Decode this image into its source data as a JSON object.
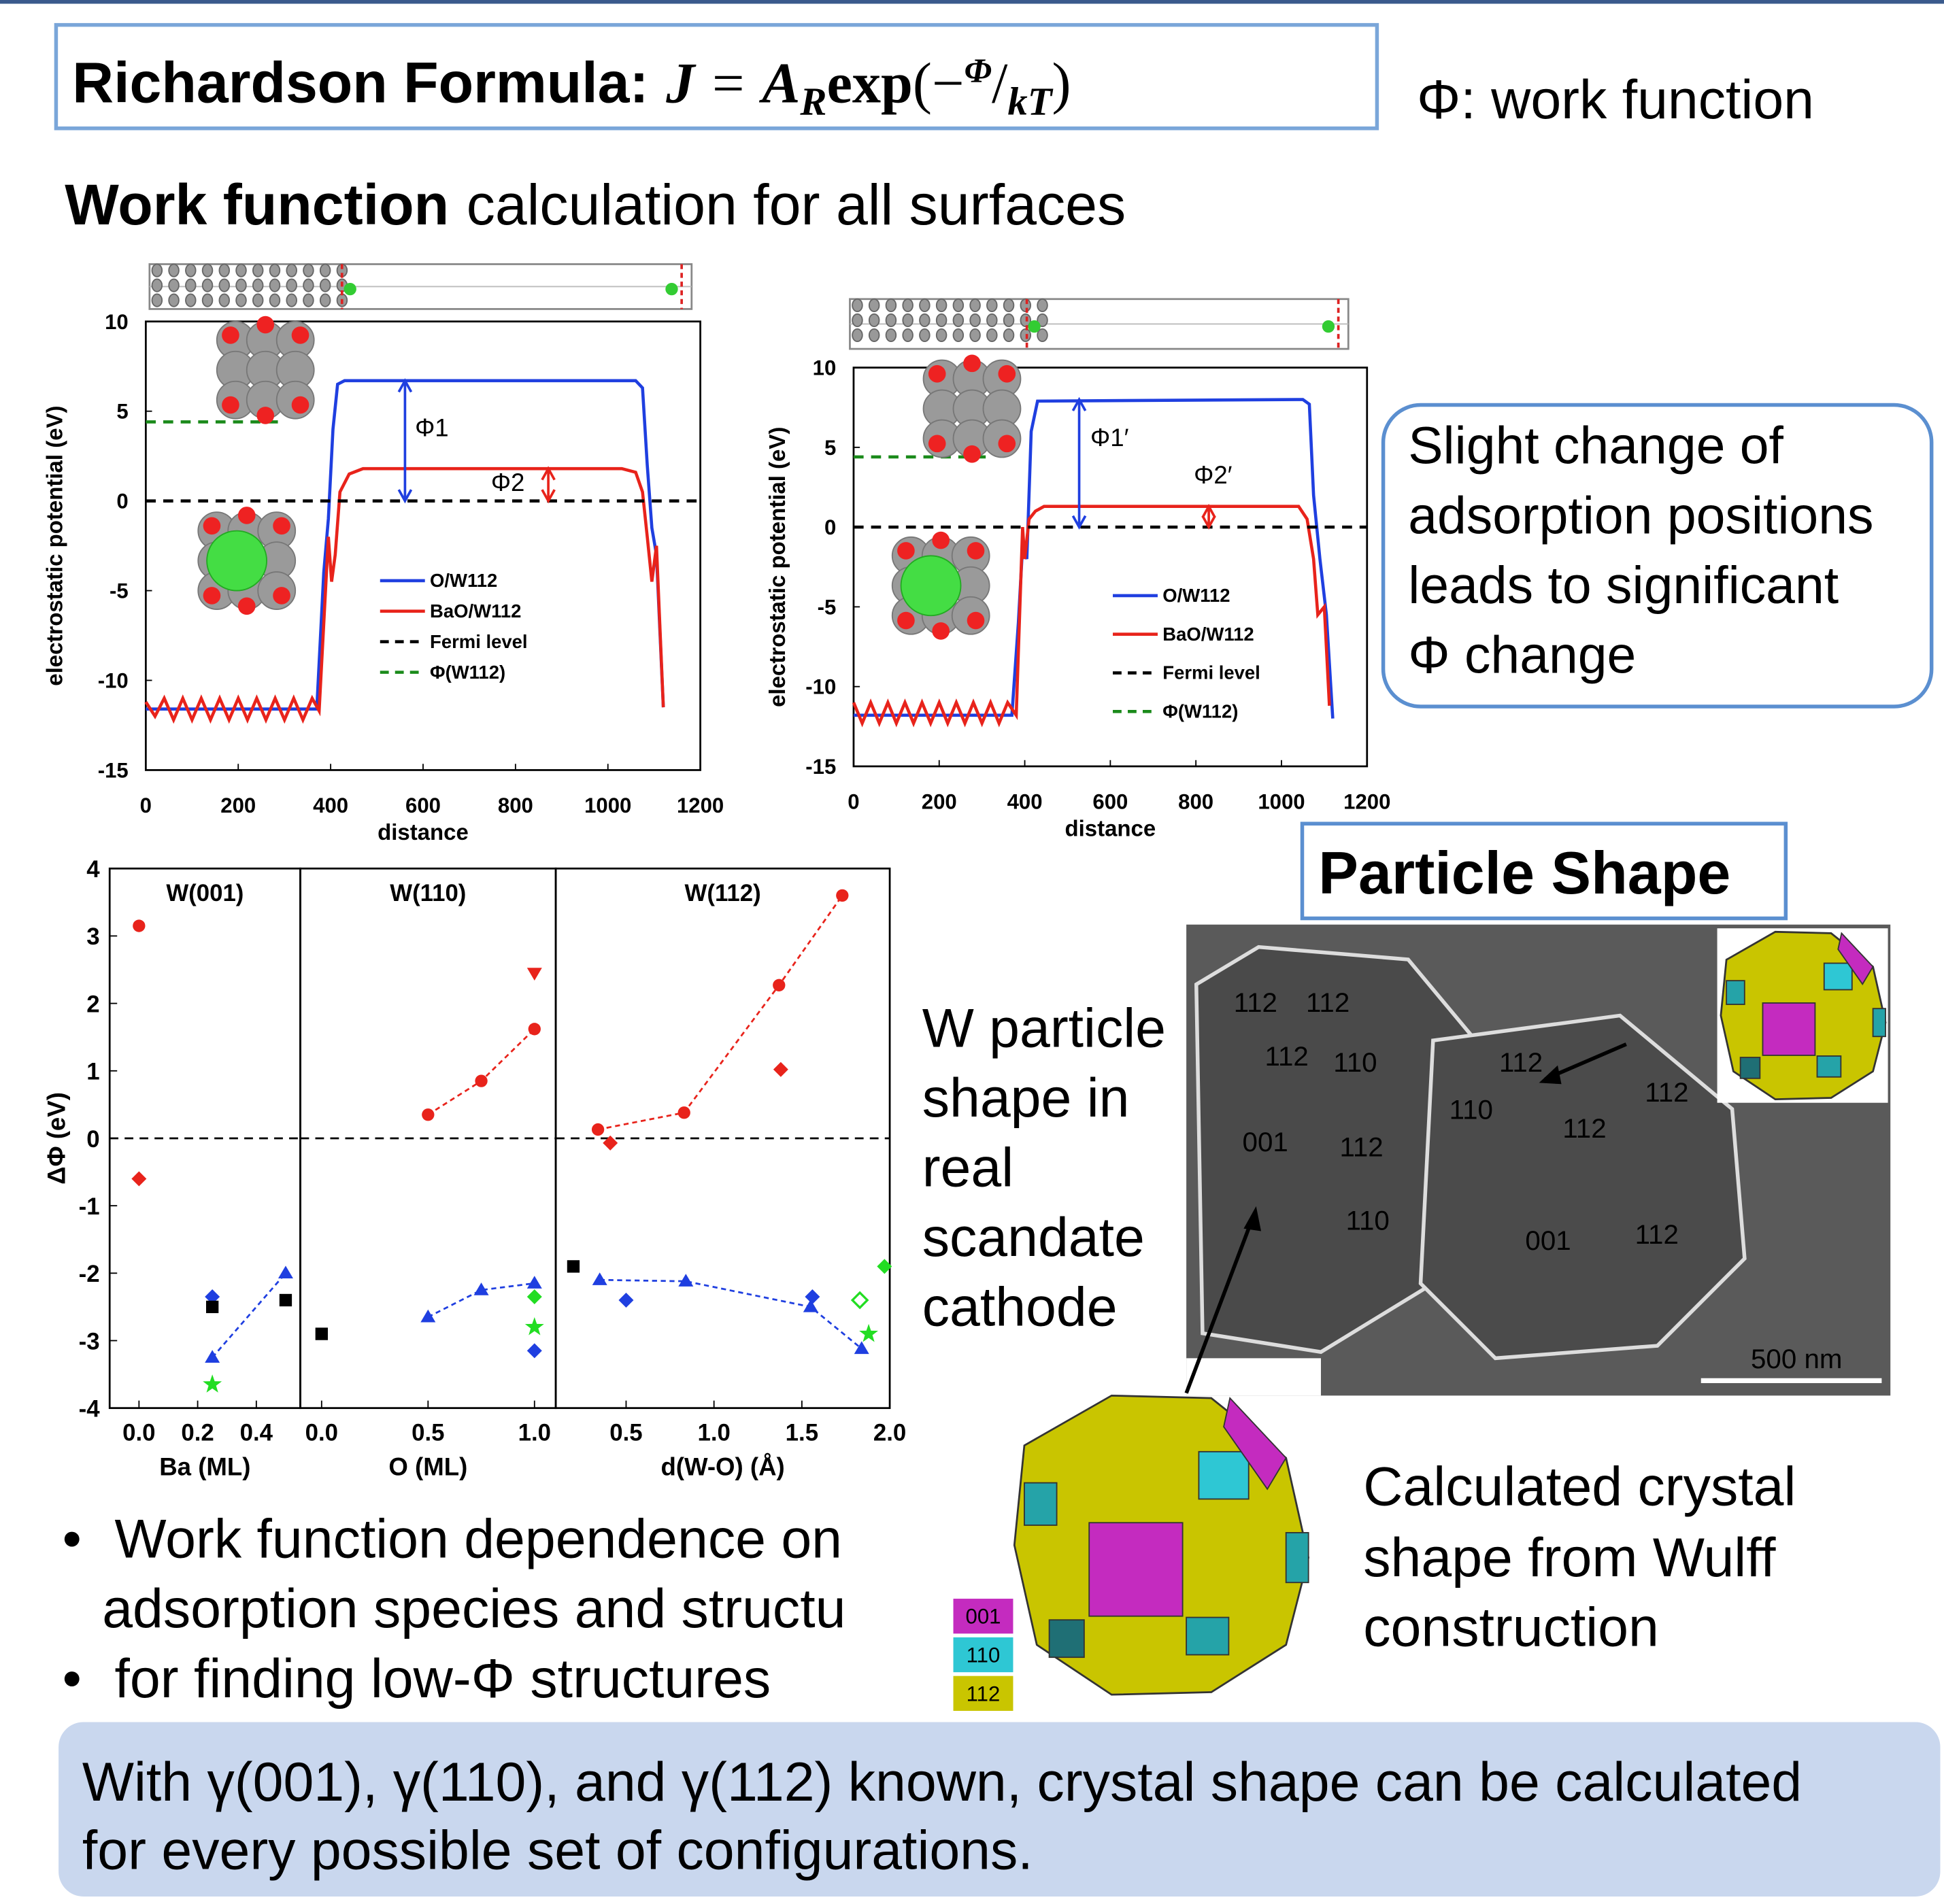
{
  "header": {
    "title": "Richardson Formula:",
    "formula": [
      "J",
      "=",
      "A",
      "R",
      "exp",
      "(−",
      "Φ",
      "/",
      "kT",
      ")"
    ],
    "note": "Φ: work function"
  },
  "subtitle": {
    "bold": "Work function",
    "rest": "calculation for all surfaces"
  },
  "chart_data": [
    {
      "type": "line",
      "xlabel": "distance",
      "ylabel": "electrostatic potential (eV)",
      "xlim": [
        0,
        1200
      ],
      "xticks": [
        0,
        200,
        400,
        600,
        800,
        1000,
        1200
      ],
      "ylim": [
        -15,
        10
      ],
      "yticks": [
        -15,
        -10,
        -5,
        0,
        5,
        10
      ],
      "legend": "center-right",
      "annotations": [
        "Φ1",
        "Φ2"
      ],
      "series": [
        {
          "name": "O/W112",
          "color": "#1f3fe0",
          "x": [
            0,
            100,
            200,
            300,
            370,
            385,
            395,
            405,
            415,
            430,
            1060,
            1075,
            1085,
            1095,
            1105,
            1120
          ],
          "values": [
            -11.6,
            -11.6,
            -11.6,
            -11.6,
            -11.6,
            -4,
            -1,
            4,
            6.5,
            6.7,
            6.7,
            6.3,
            2,
            -1.5,
            -3,
            -11.5
          ]
        },
        {
          "name": "BaO/W112",
          "color": "#e8231b",
          "x": [
            0,
            20,
            40,
            60,
            80,
            100,
            120,
            140,
            160,
            180,
            200,
            220,
            240,
            260,
            280,
            300,
            320,
            340,
            360,
            375,
            395,
            402,
            410,
            420,
            440,
            470,
            1030,
            1060,
            1075,
            1085,
            1095,
            1105,
            1120
          ],
          "values": [
            -11.2,
            -12.0,
            -11.0,
            -12.2,
            -11.0,
            -12.2,
            -11.0,
            -12.2,
            -11.0,
            -12.2,
            -11.0,
            -12.2,
            -11.0,
            -12.2,
            -11.0,
            -12.2,
            -11.0,
            -12.2,
            -11.0,
            -11.7,
            -2,
            -4.5,
            -3,
            0.5,
            1.5,
            1.8,
            1.8,
            1.6,
            0.5,
            -2,
            -4.5,
            -2.5,
            -11.5
          ]
        },
        {
          "name": "Fermi level",
          "color": "#000000",
          "dash": true,
          "x": [
            0,
            1200
          ],
          "values": [
            0,
            0
          ]
        },
        {
          "name": "Φ(W112)",
          "color": "#1a8a1a",
          "dash": true,
          "x": [
            0,
            300
          ],
          "values": [
            4.4,
            4.4
          ]
        }
      ]
    },
    {
      "type": "line",
      "xlabel": "distance",
      "ylabel": "electrostatic potential (eV)",
      "xlim": [
        0,
        1200
      ],
      "xticks": [
        0,
        200,
        400,
        600,
        800,
        1000,
        1200
      ],
      "ylim": [
        -15,
        10
      ],
      "yticks": [
        -15,
        -10,
        -5,
        0,
        5,
        10
      ],
      "legend": "center-right",
      "annotations": [
        "Φ1′",
        "Φ2′"
      ],
      "series": [
        {
          "name": "O/W112",
          "color": "#1f3fe0",
          "x": [
            0,
            370,
            385,
            395,
            405,
            415,
            430,
            1050,
            1065,
            1075,
            1090,
            1105,
            1120
          ],
          "values": [
            -11.8,
            -11.8,
            -6,
            -1.2,
            -2,
            6,
            7.9,
            8,
            7.7,
            2,
            -2,
            -5.5,
            -12
          ]
        },
        {
          "name": "BaO/W112",
          "color": "#e8231b",
          "x": [
            0,
            20,
            40,
            60,
            80,
            100,
            120,
            140,
            160,
            180,
            200,
            220,
            240,
            260,
            280,
            300,
            320,
            340,
            360,
            380,
            395,
            400,
            410,
            425,
            445,
            1040,
            1060,
            1075,
            1085,
            1100,
            1112
          ],
          "values": [
            -11.0,
            -12.3,
            -11.0,
            -12.3,
            -11.0,
            -12.3,
            -11.0,
            -12.3,
            -11.0,
            -12.3,
            -11.0,
            -12.3,
            -11.0,
            -12.3,
            -11.0,
            -12.3,
            -11.0,
            -12.3,
            -11.0,
            -11.8,
            0,
            -2,
            0.5,
            1,
            1.3,
            1.3,
            0.5,
            -2,
            -5.5,
            -5,
            -11.2
          ]
        },
        {
          "name": "Fermi level",
          "color": "#000000",
          "dash": true,
          "x": [
            0,
            1200
          ],
          "values": [
            0,
            0
          ]
        },
        {
          "name": "Φ(W112)",
          "color": "#1a8a1a",
          "dash": true,
          "x": [
            0,
            310
          ],
          "values": [
            4.4,
            4.4
          ]
        }
      ]
    },
    {
      "type": "scatter",
      "title": "W(001)",
      "xlabel": "Ba (ML)",
      "ylabel": "ΔΦ (eV)",
      "xlim": [
        -0.1,
        0.55
      ],
      "xticks": [
        {
          "value": 0,
          "label": "0.0"
        },
        0.2,
        0.4
      ],
      "ylim": [
        -4,
        4
      ],
      "yticks": [
        -4,
        -3,
        -2,
        -1,
        0,
        1,
        2,
        3,
        4
      ],
      "hline": 0,
      "series": [
        {
          "color": "#e8231b",
          "marker": "circle",
          "x": [
            0
          ],
          "values": [
            3.15
          ]
        },
        {
          "color": "#e8231b",
          "marker": "diamond",
          "x": [
            0
          ],
          "values": [
            -0.6
          ]
        },
        {
          "color": "#1f3fe0",
          "marker": "diamond",
          "x": [
            0.25
          ],
          "values": [
            -2.35
          ]
        },
        {
          "color": "#1f3fe0",
          "marker": "triangle",
          "connect": true,
          "x": [
            0.25,
            0.5
          ],
          "values": [
            -3.25,
            -2.0
          ]
        },
        {
          "color": "#000000",
          "marker": "square",
          "x": [
            0.25,
            0.5
          ],
          "values": [
            -2.5,
            -2.4
          ]
        },
        {
          "color": "#22dd22",
          "marker": "star",
          "x": [
            0.25
          ],
          "values": [
            -3.65
          ]
        }
      ]
    },
    {
      "type": "scatter",
      "title": "W(110)",
      "xlabel": "O (ML)",
      "xlim": [
        -0.1,
        1.1
      ],
      "xticks": [
        {
          "value": 0,
          "label": "0.0"
        },
        0.5,
        {
          "value": 1,
          "label": "1.0"
        }
      ],
      "ylim": [
        -4,
        4
      ],
      "hline": 0,
      "series": [
        {
          "color": "#e8231b",
          "marker": "circle",
          "connect": true,
          "x": [
            0.5,
            0.75,
            1.0
          ],
          "values": [
            0.35,
            0.85,
            1.62
          ]
        },
        {
          "color": "#e8231b",
          "marker": "tridown",
          "x": [
            1.0
          ],
          "values": [
            2.45
          ]
        },
        {
          "color": "#1f3fe0",
          "marker": "triangle",
          "connect": true,
          "x": [
            0.5,
            0.75,
            1.0
          ],
          "values": [
            -2.65,
            -2.25,
            -2.15
          ]
        },
        {
          "color": "#1f3fe0",
          "marker": "diamond",
          "x": [
            1.0
          ],
          "values": [
            -3.15
          ]
        },
        {
          "color": "#000000",
          "marker": "square",
          "x": [
            0
          ],
          "values": [
            -2.9
          ]
        },
        {
          "color": "#22dd22",
          "marker": "diamond",
          "x": [
            1.0
          ],
          "values": [
            -2.35
          ]
        },
        {
          "color": "#22dd22",
          "marker": "star",
          "x": [
            1.0
          ],
          "values": [
            -2.8
          ]
        }
      ]
    },
    {
      "type": "scatter",
      "title": "W(112)",
      "xlabel": "d(W-O) (Å)",
      "xlim": [
        0.1,
        2.0
      ],
      "xticks": [
        0.5,
        {
          "value": 1,
          "label": "1.0"
        },
        1.5,
        {
          "value": 2,
          "label": "2.0"
        }
      ],
      "ylim": [
        -4,
        4
      ],
      "hline": 0,
      "series": [
        {
          "color": "#e8231b",
          "marker": "circle",
          "connect": true,
          "x": [
            0.34,
            0.83,
            1.37,
            1.73
          ],
          "values": [
            0.13,
            0.38,
            2.27,
            3.6
          ]
        },
        {
          "color": "#e8231b",
          "marker": "diamond",
          "x": [
            0.41,
            1.38
          ],
          "values": [
            -0.07,
            1.02
          ]
        },
        {
          "color": "#1f3fe0",
          "marker": "triangle",
          "connect": true,
          "x": [
            0.35,
            0.84,
            1.55,
            1.84
          ],
          "values": [
            -2.1,
            -2.12,
            -2.5,
            -3.12
          ]
        },
        {
          "color": "#1f3fe0",
          "marker": "diamond",
          "x": [
            0.5,
            1.56
          ],
          "values": [
            -2.4,
            -2.35
          ]
        },
        {
          "color": "#000000",
          "marker": "square",
          "x": [
            0.2
          ],
          "values": [
            -1.9
          ]
        },
        {
          "color": "#22dd22",
          "marker": "diamond",
          "x": [
            1.97
          ],
          "values": [
            -1.9
          ]
        },
        {
          "color": "#22dd22",
          "marker": "opendiamond",
          "x": [
            1.83
          ],
          "values": [
            -2.4
          ]
        },
        {
          "color": "#22dd22",
          "marker": "star",
          "x": [
            1.88
          ],
          "values": [
            -2.9
          ]
        }
      ]
    }
  ],
  "callout": {
    "lines": [
      "Slight change of",
      "adsorption positions",
      "leads to significant",
      "Φ change"
    ]
  },
  "particle": {
    "title": "Particle Shape",
    "real_lines": [
      "W particle",
      "shape in",
      "real",
      "scandate",
      "cathode"
    ],
    "sem_labels": [
      {
        "text": "112",
        "color": "#e4dc3c"
      },
      {
        "text": "112",
        "color": "#e4dc3c"
      },
      {
        "text": "112",
        "color": "#e4dc3c"
      },
      {
        "text": "110",
        "color": "#3ab8e8"
      },
      {
        "text": "112",
        "color": "#e4dc3c"
      },
      {
        "text": "110",
        "color": "#3ab8e8"
      },
      {
        "text": "112",
        "color": "#e4dc3c"
      },
      {
        "text": "001",
        "color": "#e63a2a"
      },
      {
        "text": "112",
        "color": "#e4dc3c"
      },
      {
        "text": "112",
        "color": "#e4dc3c"
      },
      {
        "text": "110",
        "color": "#3ab8e8"
      },
      {
        "text": "001",
        "color": "#e63a2a"
      },
      {
        "text": "112",
        "color": "#e4dc3c"
      }
    ],
    "scale_bar": "500 nm",
    "legend": [
      "001",
      "110",
      "112"
    ],
    "calc_lines": [
      "Calculated crystal",
      "shape from Wulff",
      "construction"
    ]
  },
  "bullets": [
    "Work function dependence on",
    "adsorption species and structu",
    "for finding low-Φ structures"
  ],
  "footer": {
    "lines": [
      "With γ(001), γ(110), and γ(112) known, crystal shape can be calculated",
      "for every possible set of configurations."
    ]
  }
}
